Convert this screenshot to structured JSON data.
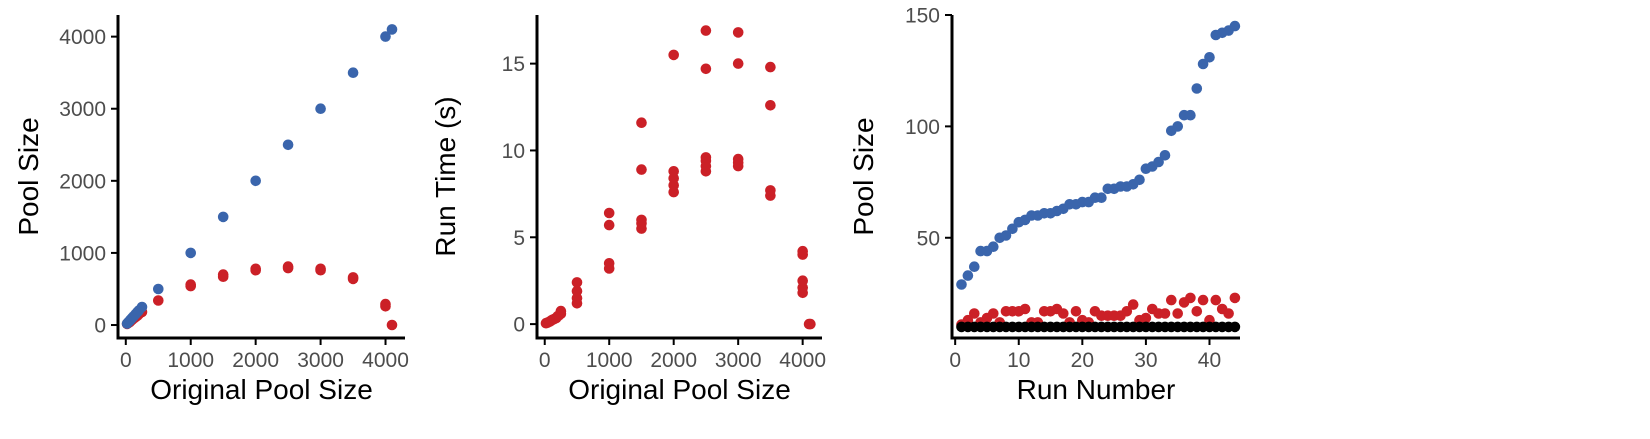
{
  "chart_data": [
    {
      "type": "scatter",
      "title": "",
      "xlabel": "Original Pool Size",
      "ylabel": "Pool Size",
      "xlim": [
        -120,
        4300
      ],
      "ylim": [
        -180,
        4300
      ],
      "xticks": [
        0,
        1000,
        2000,
        3000,
        4000
      ],
      "yticks": [
        0,
        1000,
        2000,
        3000,
        4000
      ],
      "series": [
        {
          "color": "#cb2027",
          "points": [
            [
              20,
              15
            ],
            [
              40,
              30
            ],
            [
              60,
              40
            ],
            [
              80,
              60
            ],
            [
              100,
              75
            ],
            [
              120,
              90
            ],
            [
              150,
              110
            ],
            [
              180,
              130
            ],
            [
              200,
              150
            ],
            [
              250,
              180
            ],
            [
              500,
              340
            ],
            [
              1000,
              540
            ],
            [
              1000,
              560
            ],
            [
              1500,
              670
            ],
            [
              1500,
              700
            ],
            [
              2000,
              760
            ],
            [
              2000,
              780
            ],
            [
              2500,
              790
            ],
            [
              2500,
              810
            ],
            [
              3000,
              760
            ],
            [
              3000,
              780
            ],
            [
              3500,
              640
            ],
            [
              3500,
              660
            ],
            [
              4000,
              260
            ],
            [
              4000,
              290
            ],
            [
              4100,
              0
            ]
          ]
        },
        {
          "color": "#3a65ac",
          "points": [
            [
              20,
              20
            ],
            [
              40,
              40
            ],
            [
              60,
              60
            ],
            [
              80,
              80
            ],
            [
              100,
              100
            ],
            [
              120,
              120
            ],
            [
              150,
              150
            ],
            [
              180,
              180
            ],
            [
              200,
              200
            ],
            [
              250,
              250
            ],
            [
              500,
              500
            ],
            [
              1000,
              1000
            ],
            [
              1500,
              1500
            ],
            [
              2000,
              2000
            ],
            [
              2500,
              2500
            ],
            [
              3000,
              3000
            ],
            [
              3500,
              3500
            ],
            [
              4000,
              4000
            ],
            [
              4100,
              4100
            ]
          ]
        }
      ]
    },
    {
      "type": "scatter",
      "title": "",
      "xlabel": "Original Pool Size",
      "ylabel": "Run Time (s)",
      "xlim": [
        -120,
        4300
      ],
      "ylim": [
        -0.8,
        17.8
      ],
      "xticks": [
        0,
        1000,
        2000,
        3000,
        4000
      ],
      "yticks": [
        0,
        5,
        10,
        15
      ],
      "series": [
        {
          "color": "#cb2027",
          "points": [
            [
              20,
              0.05
            ],
            [
              50,
              0.1
            ],
            [
              80,
              0.15
            ],
            [
              100,
              0.2
            ],
            [
              120,
              0.25
            ],
            [
              150,
              0.3
            ],
            [
              180,
              0.35
            ],
            [
              200,
              0.45
            ],
            [
              220,
              0.5
            ],
            [
              250,
              0.6
            ],
            [
              250,
              0.75
            ],
            [
              500,
              1.2
            ],
            [
              500,
              1.5
            ],
            [
              500,
              1.9
            ],
            [
              500,
              2.4
            ],
            [
              1000,
              3.2
            ],
            [
              1000,
              3.5
            ],
            [
              1000,
              5.7
            ],
            [
              1000,
              6.4
            ],
            [
              1500,
              5.5
            ],
            [
              1500,
              5.8
            ],
            [
              1500,
              6.0
            ],
            [
              1500,
              8.9
            ],
            [
              1500,
              11.6
            ],
            [
              2000,
              7.6
            ],
            [
              2000,
              8.0
            ],
            [
              2000,
              8.4
            ],
            [
              2000,
              8.8
            ],
            [
              2000,
              15.5
            ],
            [
              2500,
              8.8
            ],
            [
              2500,
              9.1
            ],
            [
              2500,
              9.4
            ],
            [
              2500,
              9.6
            ],
            [
              2500,
              14.7
            ],
            [
              2500,
              16.9
            ],
            [
              3000,
              9.1
            ],
            [
              3000,
              9.3
            ],
            [
              3000,
              9.5
            ],
            [
              3000,
              15.0
            ],
            [
              3000,
              16.8
            ],
            [
              3500,
              7.4
            ],
            [
              3500,
              7.7
            ],
            [
              3500,
              12.6
            ],
            [
              3500,
              14.8
            ],
            [
              4000,
              1.8
            ],
            [
              4000,
              2.1
            ],
            [
              4000,
              2.5
            ],
            [
              4000,
              4.0
            ],
            [
              4000,
              4.2
            ],
            [
              4100,
              0.0
            ],
            [
              4120,
              0.0
            ]
          ]
        }
      ]
    },
    {
      "type": "scatter",
      "title": "",
      "xlabel": "Run Number",
      "ylabel": "Pool Size",
      "xlim": [
        -0.5,
        44.8
      ],
      "ylim": [
        5,
        150
      ],
      "xticks": [
        0,
        10,
        20,
        30,
        40
      ],
      "yticks": [
        50,
        100,
        150
      ],
      "series": [
        {
          "color": "#3a65ac",
          "points": [
            [
              1,
              29
            ],
            [
              2,
              33
            ],
            [
              3,
              37
            ],
            [
              4,
              44
            ],
            [
              5,
              44
            ],
            [
              6,
              46
            ],
            [
              7,
              50
            ],
            [
              8,
              51
            ],
            [
              9,
              54
            ],
            [
              10,
              57
            ],
            [
              11,
              58
            ],
            [
              12,
              60
            ],
            [
              13,
              60
            ],
            [
              14,
              61
            ],
            [
              15,
              61
            ],
            [
              16,
              62
            ],
            [
              17,
              63
            ],
            [
              18,
              65
            ],
            [
              19,
              65
            ],
            [
              20,
              66
            ],
            [
              21,
              66
            ],
            [
              22,
              68
            ],
            [
              23,
              68
            ],
            [
              24,
              72
            ],
            [
              25,
              72
            ],
            [
              26,
              73
            ],
            [
              27,
              73
            ],
            [
              28,
              74
            ],
            [
              29,
              76
            ],
            [
              30,
              81
            ],
            [
              31,
              82
            ],
            [
              32,
              84
            ],
            [
              33,
              87
            ],
            [
              34,
              98
            ],
            [
              35,
              100
            ],
            [
              36,
              105
            ],
            [
              37,
              105
            ],
            [
              38,
              117
            ],
            [
              39,
              128
            ],
            [
              40,
              131
            ],
            [
              41,
              141
            ],
            [
              42,
              142
            ],
            [
              43,
              143
            ],
            [
              44,
              145
            ]
          ]
        },
        {
          "color": "#cb2027",
          "points": [
            [
              1,
              11
            ],
            [
              2,
              13
            ],
            [
              3,
              16
            ],
            [
              4,
              12
            ],
            [
              5,
              14
            ],
            [
              6,
              16
            ],
            [
              7,
              12
            ],
            [
              8,
              17
            ],
            [
              9,
              17
            ],
            [
              10,
              17
            ],
            [
              11,
              18
            ],
            [
              12,
              12
            ],
            [
              13,
              12
            ],
            [
              14,
              17
            ],
            [
              15,
              17
            ],
            [
              16,
              18
            ],
            [
              17,
              16
            ],
            [
              18,
              12
            ],
            [
              19,
              17
            ],
            [
              20,
              13
            ],
            [
              21,
              12
            ],
            [
              22,
              17
            ],
            [
              23,
              15
            ],
            [
              24,
              15
            ],
            [
              25,
              15
            ],
            [
              26,
              15
            ],
            [
              27,
              17
            ],
            [
              28,
              20
            ],
            [
              29,
              13
            ],
            [
              30,
              14
            ],
            [
              31,
              18
            ],
            [
              32,
              16
            ],
            [
              33,
              16
            ],
            [
              34,
              22
            ],
            [
              35,
              16
            ],
            [
              36,
              21
            ],
            [
              37,
              23
            ],
            [
              38,
              17
            ],
            [
              39,
              22
            ],
            [
              40,
              13
            ],
            [
              41,
              22
            ],
            [
              42,
              18
            ],
            [
              43,
              16
            ],
            [
              44,
              23
            ]
          ]
        },
        {
          "color": "#000000",
          "points": [
            [
              1,
              10
            ],
            [
              2,
              10
            ],
            [
              3,
              10
            ],
            [
              4,
              10
            ],
            [
              5,
              10
            ],
            [
              6,
              10
            ],
            [
              7,
              10
            ],
            [
              8,
              10
            ],
            [
              9,
              10
            ],
            [
              10,
              10
            ],
            [
              11,
              10
            ],
            [
              12,
              10
            ],
            [
              13,
              10
            ],
            [
              14,
              10
            ],
            [
              15,
              10
            ],
            [
              16,
              10
            ],
            [
              17,
              10
            ],
            [
              18,
              10
            ],
            [
              19,
              10
            ],
            [
              20,
              10
            ],
            [
              21,
              10
            ],
            [
              22,
              10
            ],
            [
              23,
              10
            ],
            [
              24,
              10
            ],
            [
              25,
              10
            ],
            [
              26,
              10
            ],
            [
              27,
              10
            ],
            [
              28,
              10
            ],
            [
              29,
              10
            ],
            [
              30,
              10
            ],
            [
              31,
              10
            ],
            [
              32,
              10
            ],
            [
              33,
              10
            ],
            [
              34,
              10
            ],
            [
              35,
              10
            ],
            [
              36,
              10
            ],
            [
              37,
              10
            ],
            [
              38,
              10
            ],
            [
              39,
              10
            ],
            [
              40,
              10
            ],
            [
              41,
              10
            ],
            [
              42,
              10
            ],
            [
              43,
              10
            ],
            [
              44,
              10
            ]
          ]
        }
      ]
    }
  ]
}
